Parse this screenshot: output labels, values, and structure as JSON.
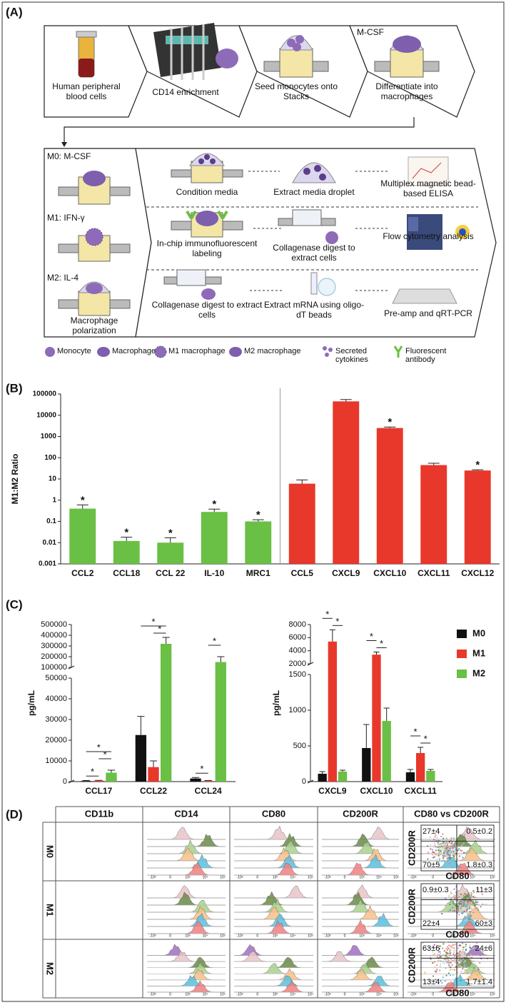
{
  "panel_a": {
    "label": "(A)",
    "steps": [
      "Human peripheral blood cells",
      "CD14 enrichment",
      "Seed monocytes onto Stacks",
      "Differentiate into macrophages"
    ],
    "step_treatment": "M-CSF",
    "conditions": [
      "M0: M-CSF",
      "M1: IFN-γ",
      "M2: IL-4"
    ],
    "conditions_caption": "Macrophage polarization",
    "workflows": [
      [
        "Condition media",
        "Extract media droplet",
        "Multiplex magnetic bead-based ELISA"
      ],
      [
        "In-chip immunofluorescent labeling",
        "Collagenase digest to extract cells",
        "Flow cytometry analysis"
      ],
      [
        "Collagenase digest to extract cells",
        "Extract mRNA using oligo-dT beads",
        "Pre-amp and qRT-PCR"
      ]
    ],
    "legend": [
      "Monocyte",
      "Macrophage",
      "M1 macrophage",
      "M2 macrophage",
      "Secreted cytokines",
      "Fluorescent antibody"
    ]
  },
  "chart_data": [
    {
      "type": "bar",
      "panel_label": "(B)",
      "ylabel": "M1:M2 Ratio",
      "log_scale": true,
      "categories": [
        "CCL2",
        "CCL18",
        "CCL 22",
        "IL-10",
        "MRC1",
        "CCL5",
        "CXCL9",
        "CXCL10",
        "CXCL11",
        "CXCL12"
      ],
      "values": [
        0.4,
        0.012,
        0.01,
        0.28,
        0.1,
        6,
        45000,
        2500,
        45,
        25
      ],
      "errors": [
        0.2,
        0.006,
        0.007,
        0.1,
        0.02,
        3,
        10000,
        300,
        10,
        2
      ],
      "significance": [
        "*",
        "*",
        "*",
        "*",
        "*",
        null,
        null,
        "*",
        null,
        "*"
      ],
      "colors": [
        "#6abf45",
        "#6abf45",
        "#6abf45",
        "#6abf45",
        "#6abf45",
        "#e8382b",
        "#e8382b",
        "#e8382b",
        "#e8382b",
        "#e8382b"
      ],
      "ylim": [
        0.001,
        100000
      ],
      "yticks": [
        0.001,
        0.01,
        0.1,
        1,
        10,
        100,
        1000,
        10000,
        100000
      ]
    },
    {
      "type": "bar",
      "panel_label": "(C)",
      "ylabel": "pg/mL",
      "categories": [
        "CCL17",
        "CCL22",
        "CCL24"
      ],
      "series": [
        {
          "name": "M0",
          "color": "#111111",
          "values": [
            300,
            22500,
            1500
          ],
          "errors": [
            200,
            9000,
            500
          ]
        },
        {
          "name": "M1",
          "color": "#e8382b",
          "values": [
            400,
            7000,
            300
          ],
          "errors": [
            200,
            3000,
            200
          ]
        },
        {
          "name": "M2",
          "color": "#6abf45",
          "values": [
            4300,
            320000,
            150000
          ],
          "errors": [
            1200,
            60000,
            50000
          ]
        }
      ],
      "segments": [
        {
          "ylim": [
            0,
            50000
          ],
          "yticks": [
            0,
            10000,
            20000,
            30000,
            40000,
            50000
          ]
        },
        {
          "ylim": [
            100000,
            500000
          ],
          "yticks": [
            100000,
            200000,
            300000,
            400000,
            500000
          ]
        }
      ],
      "brackets": [
        {
          "label": "*",
          "category": "CCL17",
          "between": [
            "M0",
            "M1"
          ]
        },
        {
          "label": "*",
          "category": "CCL17",
          "between": [
            "M1",
            "M2"
          ]
        },
        {
          "label": "*",
          "category": "CCL17",
          "between": [
            "M0",
            "M2"
          ]
        },
        {
          "label": "*",
          "category": "CCL22",
          "between": [
            "M1",
            "M2"
          ]
        },
        {
          "label": "*",
          "category": "CCL22",
          "between": [
            "M0",
            "M2"
          ]
        },
        {
          "label": "*",
          "category": "CCL24",
          "between": [
            "M0",
            "M1"
          ]
        },
        {
          "label": "*",
          "category": "CCL24",
          "between": [
            "M1",
            "M2"
          ]
        }
      ]
    },
    {
      "type": "bar",
      "ylabel": "pg/mL",
      "legend": "right",
      "categories": [
        "CXCL9",
        "CXCL10",
        "CXCL11"
      ],
      "series": [
        {
          "name": "M0",
          "color": "#111111",
          "values": [
            110,
            470,
            130
          ],
          "errors": [
            30,
            330,
            40
          ]
        },
        {
          "name": "M1",
          "color": "#e8382b",
          "values": [
            5400,
            3400,
            400
          ],
          "errors": [
            1800,
            400,
            80
          ]
        },
        {
          "name": "M2",
          "color": "#6abf45",
          "values": [
            140,
            850,
            150
          ],
          "errors": [
            20,
            180,
            20
          ]
        }
      ],
      "segments": [
        {
          "ylim": [
            0,
            1500
          ],
          "yticks": [
            0,
            500,
            1000,
            1500
          ]
        },
        {
          "ylim": [
            2000,
            8000
          ],
          "yticks": [
            2000,
            4000,
            6000,
            8000
          ]
        }
      ],
      "brackets": [
        {
          "label": "*",
          "category": "CXCL9",
          "between": [
            "M1",
            "M2"
          ]
        },
        {
          "label": "*",
          "category": "CXCL9",
          "between": [
            "M0",
            "M1"
          ]
        },
        {
          "label": "*",
          "category": "CXCL10",
          "between": [
            "M1",
            "M2"
          ]
        },
        {
          "label": "*",
          "category": "CXCL10",
          "between": [
            "M0",
            "M1"
          ]
        },
        {
          "label": "*",
          "category": "CXCL11",
          "between": [
            "M1",
            "M2"
          ]
        },
        {
          "label": "*",
          "category": "CXCL11",
          "between": [
            "M0",
            "M1"
          ]
        }
      ]
    }
  ],
  "panel_d": {
    "label": "(D)",
    "columns": [
      "CD11b",
      "CD14",
      "CD80",
      "CD200R",
      "CD80 vs CD200R"
    ],
    "rows": [
      "M0",
      "M1",
      "M2"
    ],
    "axis_tick_labels": [
      "-10³",
      "0",
      "10³",
      "10⁴",
      "10⁵"
    ],
    "scatter_xlabel": "CD80",
    "scatter_ylabel": "CD200R",
    "quadrants": [
      [
        "27±4",
        "0.5±0.2",
        "70±5",
        "1.8±0.3"
      ],
      [
        "0.9±0.3",
        "11±3",
        "22±4",
        "60±3"
      ],
      [
        "63±6",
        "24±6",
        "13±4",
        "1.7±1.4"
      ]
    ]
  }
}
